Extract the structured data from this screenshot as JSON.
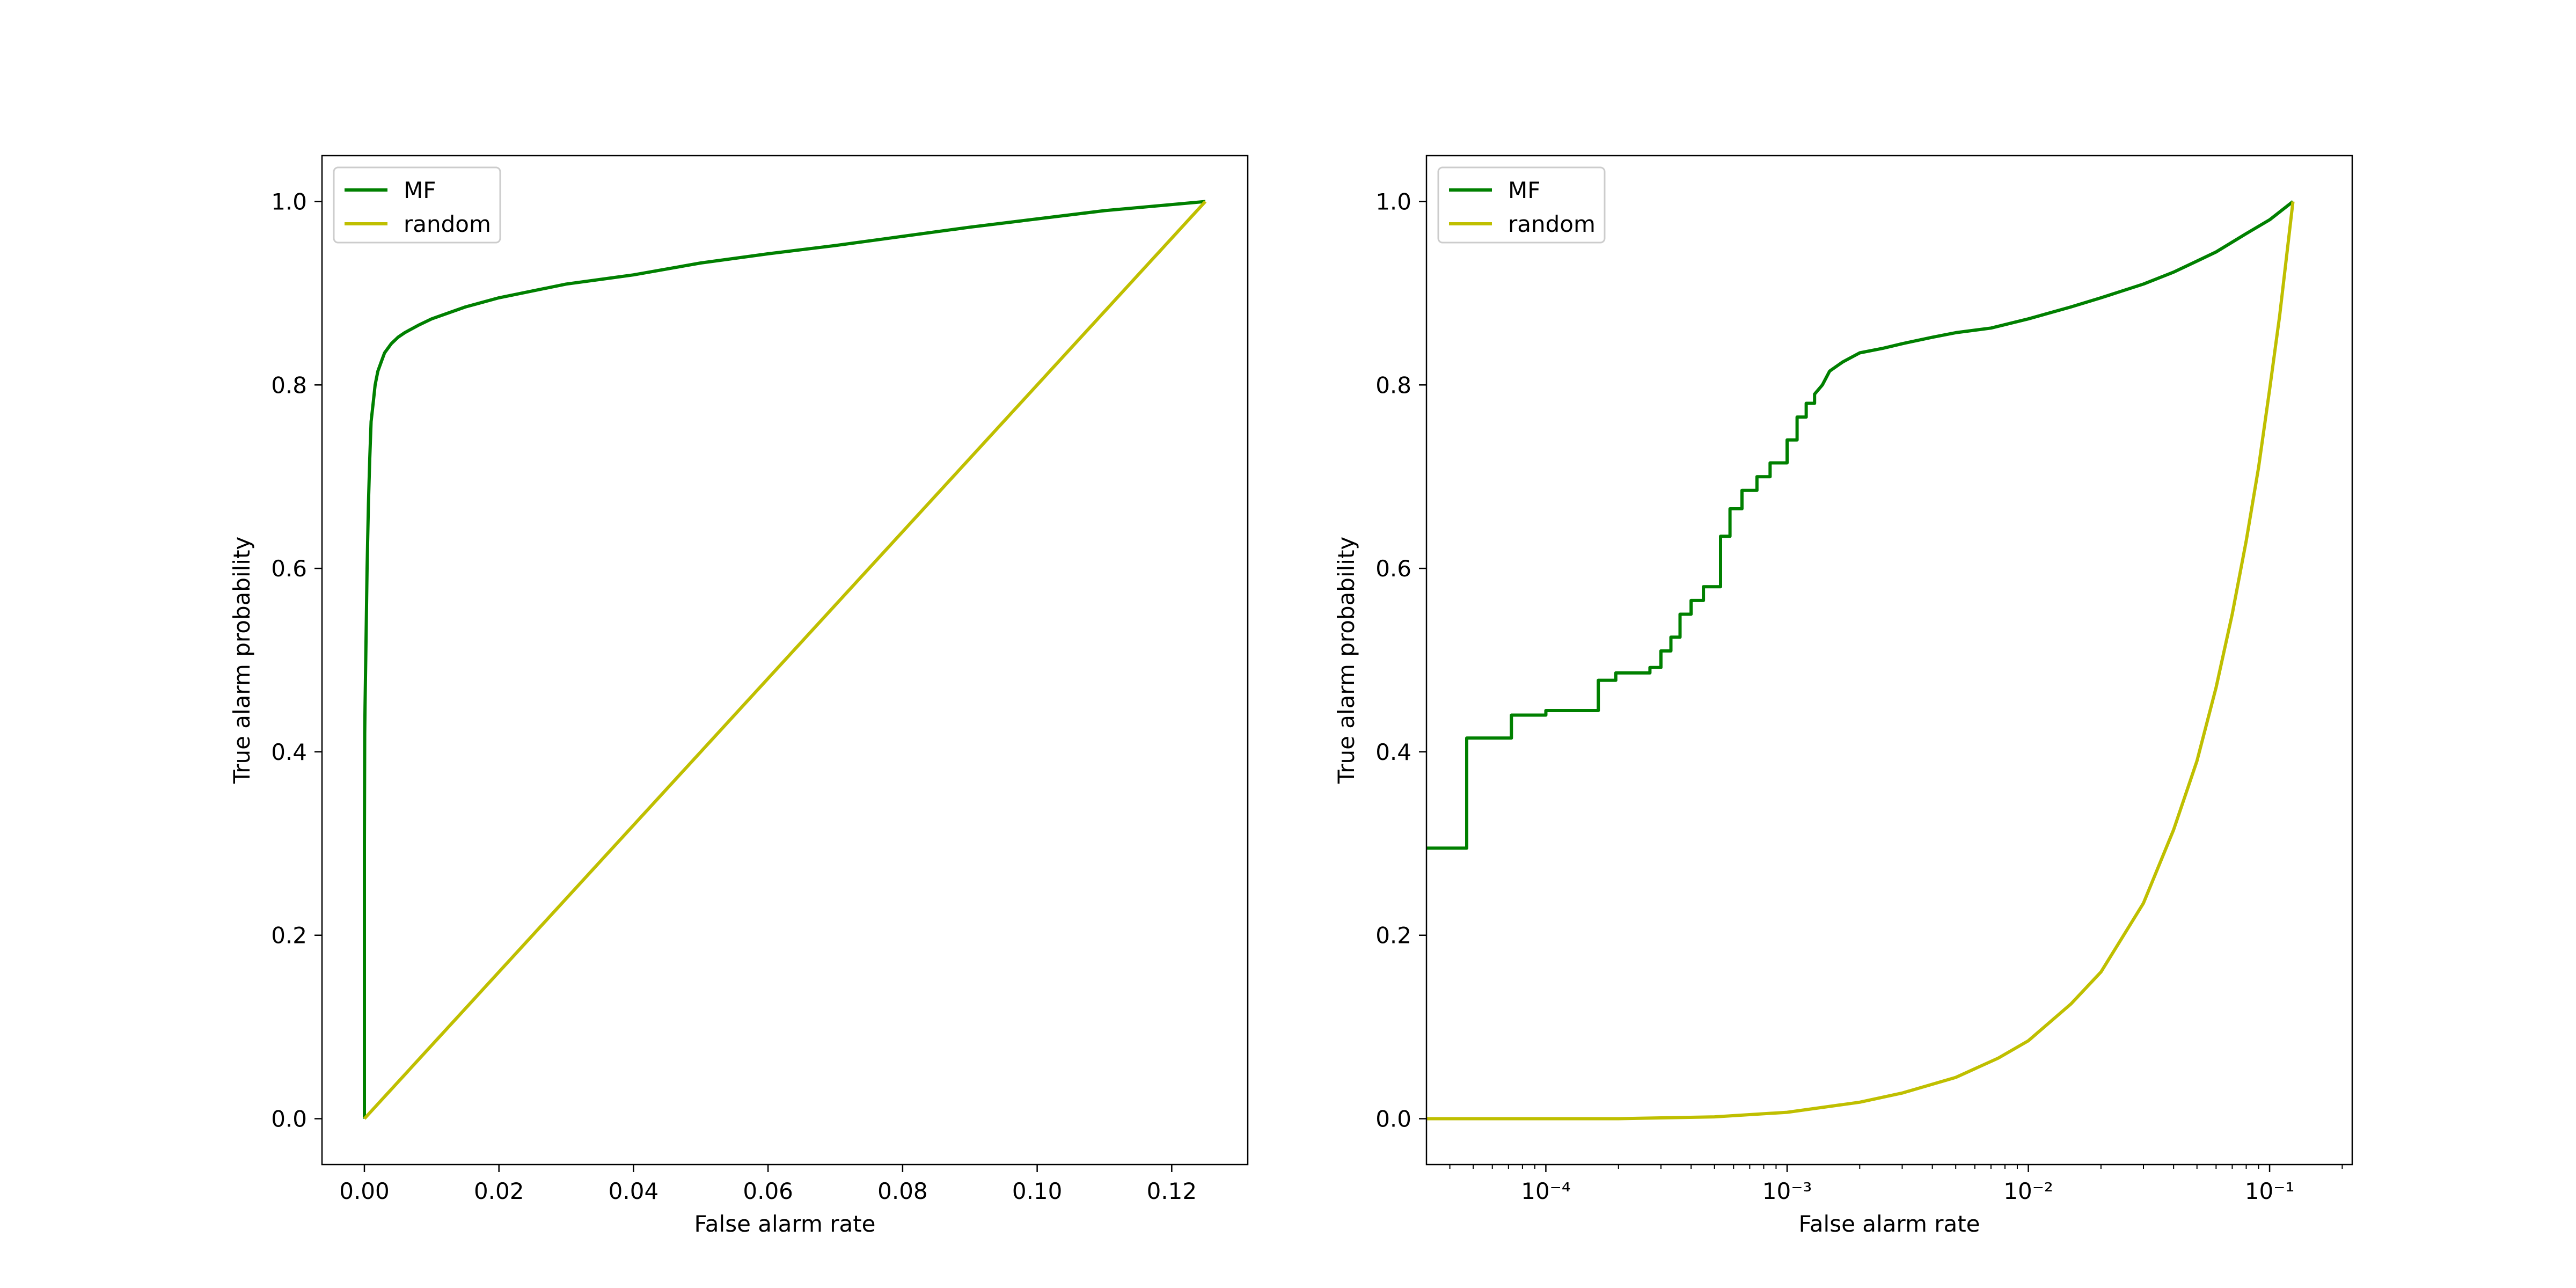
{
  "colors": {
    "MF": "#008000",
    "random": "#bfbf00",
    "axis": "#000000"
  },
  "chart_data": [
    {
      "type": "line",
      "title": "",
      "xlabel": "False alarm rate",
      "ylabel": "True alarm probability",
      "xscale": "linear",
      "xlim": [
        -0.0063,
        0.1313
      ],
      "ylim": [
        -0.05,
        1.05
      ],
      "xticks": [
        0.0,
        0.02,
        0.04,
        0.06,
        0.08,
        0.1,
        0.12
      ],
      "xtick_labels": [
        "0.00",
        "0.02",
        "0.04",
        "0.06",
        "0.08",
        "0.10",
        "0.12"
      ],
      "yticks": [
        0.0,
        0.2,
        0.4,
        0.6,
        0.8,
        1.0
      ],
      "ytick_labels": [
        "0.0",
        "0.2",
        "0.4",
        "0.6",
        "0.8",
        "1.0"
      ],
      "grid": false,
      "legend": {
        "position": "upper-left",
        "entries": [
          "MF",
          "random"
        ]
      },
      "series": [
        {
          "name": "MF",
          "x": [
            0,
            0,
            5e-05,
            0.0001,
            0.0002,
            0.0004,
            0.0006,
            0.0008,
            0.001,
            0.0013,
            0.0016,
            0.002,
            0.0025,
            0.003,
            0.004,
            0.005,
            0.006,
            0.008,
            0.01,
            0.015,
            0.02,
            0.03,
            0.04,
            0.05,
            0.06,
            0.07,
            0.08,
            0.09,
            0.1,
            0.11,
            0.125
          ],
          "y": [
            0,
            0.3,
            0.42,
            0.45,
            0.5,
            0.6,
            0.67,
            0.72,
            0.76,
            0.78,
            0.8,
            0.815,
            0.825,
            0.835,
            0.845,
            0.852,
            0.857,
            0.865,
            0.872,
            0.885,
            0.895,
            0.91,
            0.92,
            0.933,
            0.943,
            0.952,
            0.962,
            0.972,
            0.981,
            0.99,
            1.0
          ]
        },
        {
          "name": "random",
          "x": [
            0,
            0.125
          ],
          "y": [
            0,
            1.0
          ]
        }
      ]
    },
    {
      "type": "line",
      "title": "",
      "xlabel": "False alarm rate",
      "ylabel": "True alarm probability",
      "xscale": "log",
      "xlim": [
        3.2e-05,
        0.22
      ],
      "ylim": [
        -0.05,
        1.05
      ],
      "xticks": [
        0.0001,
        0.001,
        0.01,
        0.1
      ],
      "xtick_labels": [
        "10⁻⁴",
        "10⁻³",
        "10⁻²",
        "10⁻¹"
      ],
      "yticks": [
        0.0,
        0.2,
        0.4,
        0.6,
        0.8,
        1.0
      ],
      "ytick_labels": [
        "0.0",
        "0.2",
        "0.4",
        "0.6",
        "0.8",
        "1.0"
      ],
      "grid": false,
      "legend": {
        "position": "upper-left",
        "entries": [
          "MF",
          "random"
        ]
      },
      "series": [
        {
          "name": "MF",
          "x": [
            3.2e-05,
            4.7e-05,
            4.7e-05,
            7.2e-05,
            7.2e-05,
            0.0001,
            0.0001,
            0.000165,
            0.000165,
            0.000195,
            0.000195,
            0.00027,
            0.00027,
            0.0003,
            0.0003,
            0.00033,
            0.00033,
            0.00036,
            0.00036,
            0.0004,
            0.0004,
            0.00045,
            0.00045,
            0.00053,
            0.00053,
            0.00058,
            0.00058,
            0.00065,
            0.00065,
            0.00075,
            0.00075,
            0.00085,
            0.00085,
            0.001,
            0.001,
            0.0011,
            0.0011,
            0.0012,
            0.0012,
            0.0013,
            0.0013,
            0.0014,
            0.0015,
            0.0017,
            0.002,
            0.0025,
            0.003,
            0.004,
            0.005,
            0.007,
            0.01,
            0.015,
            0.02,
            0.03,
            0.04,
            0.05,
            0.06,
            0.08,
            0.1,
            0.125
          ],
          "y": [
            0.295,
            0.295,
            0.415,
            0.415,
            0.44,
            0.44,
            0.445,
            0.445,
            0.478,
            0.478,
            0.486,
            0.486,
            0.492,
            0.492,
            0.51,
            0.51,
            0.525,
            0.525,
            0.55,
            0.55,
            0.565,
            0.565,
            0.58,
            0.58,
            0.635,
            0.635,
            0.665,
            0.665,
            0.685,
            0.685,
            0.7,
            0.7,
            0.715,
            0.715,
            0.74,
            0.74,
            0.765,
            0.765,
            0.78,
            0.78,
            0.79,
            0.8,
            0.815,
            0.825,
            0.835,
            0.84,
            0.845,
            0.852,
            0.857,
            0.862,
            0.872,
            0.885,
            0.895,
            0.91,
            0.923,
            0.935,
            0.945,
            0.965,
            0.98,
            1.0
          ]
        },
        {
          "name": "random",
          "x": [
            3.2e-05,
            0.0001,
            0.0002,
            0.0005,
            0.001,
            0.002,
            0.003,
            0.005,
            0.0075,
            0.01,
            0.015,
            0.02,
            0.03,
            0.04,
            0.05,
            0.06,
            0.07,
            0.08,
            0.09,
            0.1,
            0.11,
            0.125
          ],
          "y": [
            0.0,
            0.0,
            0.0,
            0.002,
            0.007,
            0.018,
            0.028,
            0.045,
            0.066,
            0.085,
            0.125,
            0.16,
            0.235,
            0.315,
            0.39,
            0.47,
            0.55,
            0.63,
            0.71,
            0.795,
            0.875,
            1.0
          ]
        }
      ]
    }
  ]
}
